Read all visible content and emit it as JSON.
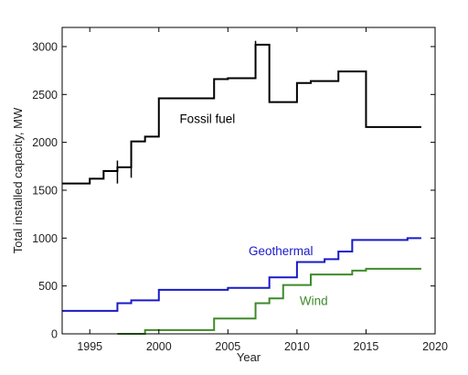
{
  "chart_data": {
    "type": "line",
    "title": "",
    "xlabel": "Year",
    "ylabel": "Total installed capacity, MW",
    "xlim": [
      1993,
      2020
    ],
    "ylim": [
      0,
      3200
    ],
    "xticks": [
      1995,
      2000,
      2005,
      2010,
      2015,
      2020
    ],
    "yticks": [
      0,
      500,
      1000,
      1500,
      2000,
      2500,
      3000
    ],
    "grid": false,
    "series": [
      {
        "name": "Fossil fuel",
        "color": "#000000",
        "step": "post",
        "x": [
          1993,
          1995,
          1996,
          1997,
          1998,
          1999,
          2000,
          2004,
          2005,
          2007,
          2008,
          2010,
          2011,
          2013,
          2015,
          2019
        ],
        "y": [
          1570,
          1620,
          1700,
          1740,
          2010,
          2060,
          2460,
          2660,
          2670,
          3020,
          2420,
          2620,
          2640,
          2740,
          2160,
          2160
        ]
      },
      {
        "name": "Geothermal",
        "color": "#1a1ac8",
        "step": "post",
        "x": [
          1993,
          1997,
          1998,
          2000,
          2005,
          2008,
          2010,
          2012,
          2013,
          2014,
          2018,
          2019
        ],
        "y": [
          240,
          320,
          350,
          460,
          480,
          590,
          750,
          780,
          860,
          980,
          1000,
          1000
        ]
      },
      {
        "name": "Wind",
        "color": "#3f8a2a",
        "step": "post",
        "x": [
          1997,
          1999,
          2004,
          2007,
          2008,
          2009,
          2011,
          2014,
          2015,
          2019
        ],
        "y": [
          0,
          40,
          160,
          320,
          370,
          510,
          620,
          660,
          680,
          680
        ]
      }
    ],
    "annotations": [
      {
        "text": "Fossil fuel",
        "color": "#000000"
      },
      {
        "text": "Geothermal",
        "color": "#1a1ac8"
      },
      {
        "text": "Wind",
        "color": "#3f8a2a"
      }
    ],
    "markers": [
      {
        "x": 1997,
        "ymin": 1570,
        "ymax": 1810,
        "color": "#000000"
      },
      {
        "x": 1998,
        "ymin": 1630,
        "ymax": 1760,
        "color": "#000000"
      },
      {
        "x": 2007,
        "ymin": 2980,
        "ymax": 3060,
        "color": "#000000"
      }
    ]
  }
}
